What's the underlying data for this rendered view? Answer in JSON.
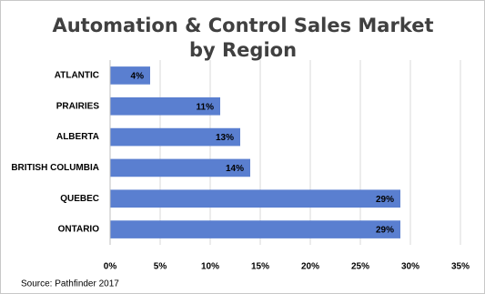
{
  "chart_data": {
    "type": "bar",
    "orientation": "horizontal",
    "title": "Automation & Control Sales Market by Region",
    "categories": [
      "ATLANTIC",
      "PRAIRIES",
      "ALBERTA",
      "BRITISH COLUMBIA",
      "QUEBEC",
      "ONTARIO"
    ],
    "values": [
      4,
      11,
      13,
      14,
      29,
      29
    ],
    "value_labels": [
      "4%",
      "11%",
      "13%",
      "14%",
      "29%",
      "29%"
    ],
    "color": "#5a7fd0",
    "xlim": [
      0,
      35
    ],
    "xticks": [
      {
        "value": 0,
        "label": "0%"
      },
      {
        "value": 5,
        "label": "5%"
      },
      {
        "value": 10,
        "label": "10%"
      },
      {
        "value": 15,
        "label": "15%"
      },
      {
        "value": 20,
        "label": "20%"
      },
      {
        "value": 25,
        "label": "25%"
      },
      {
        "value": 30,
        "label": "30%"
      },
      {
        "value": 35,
        "label": "35%"
      }
    ],
    "grid": true,
    "source": "Source: Pathfinder 2017"
  }
}
